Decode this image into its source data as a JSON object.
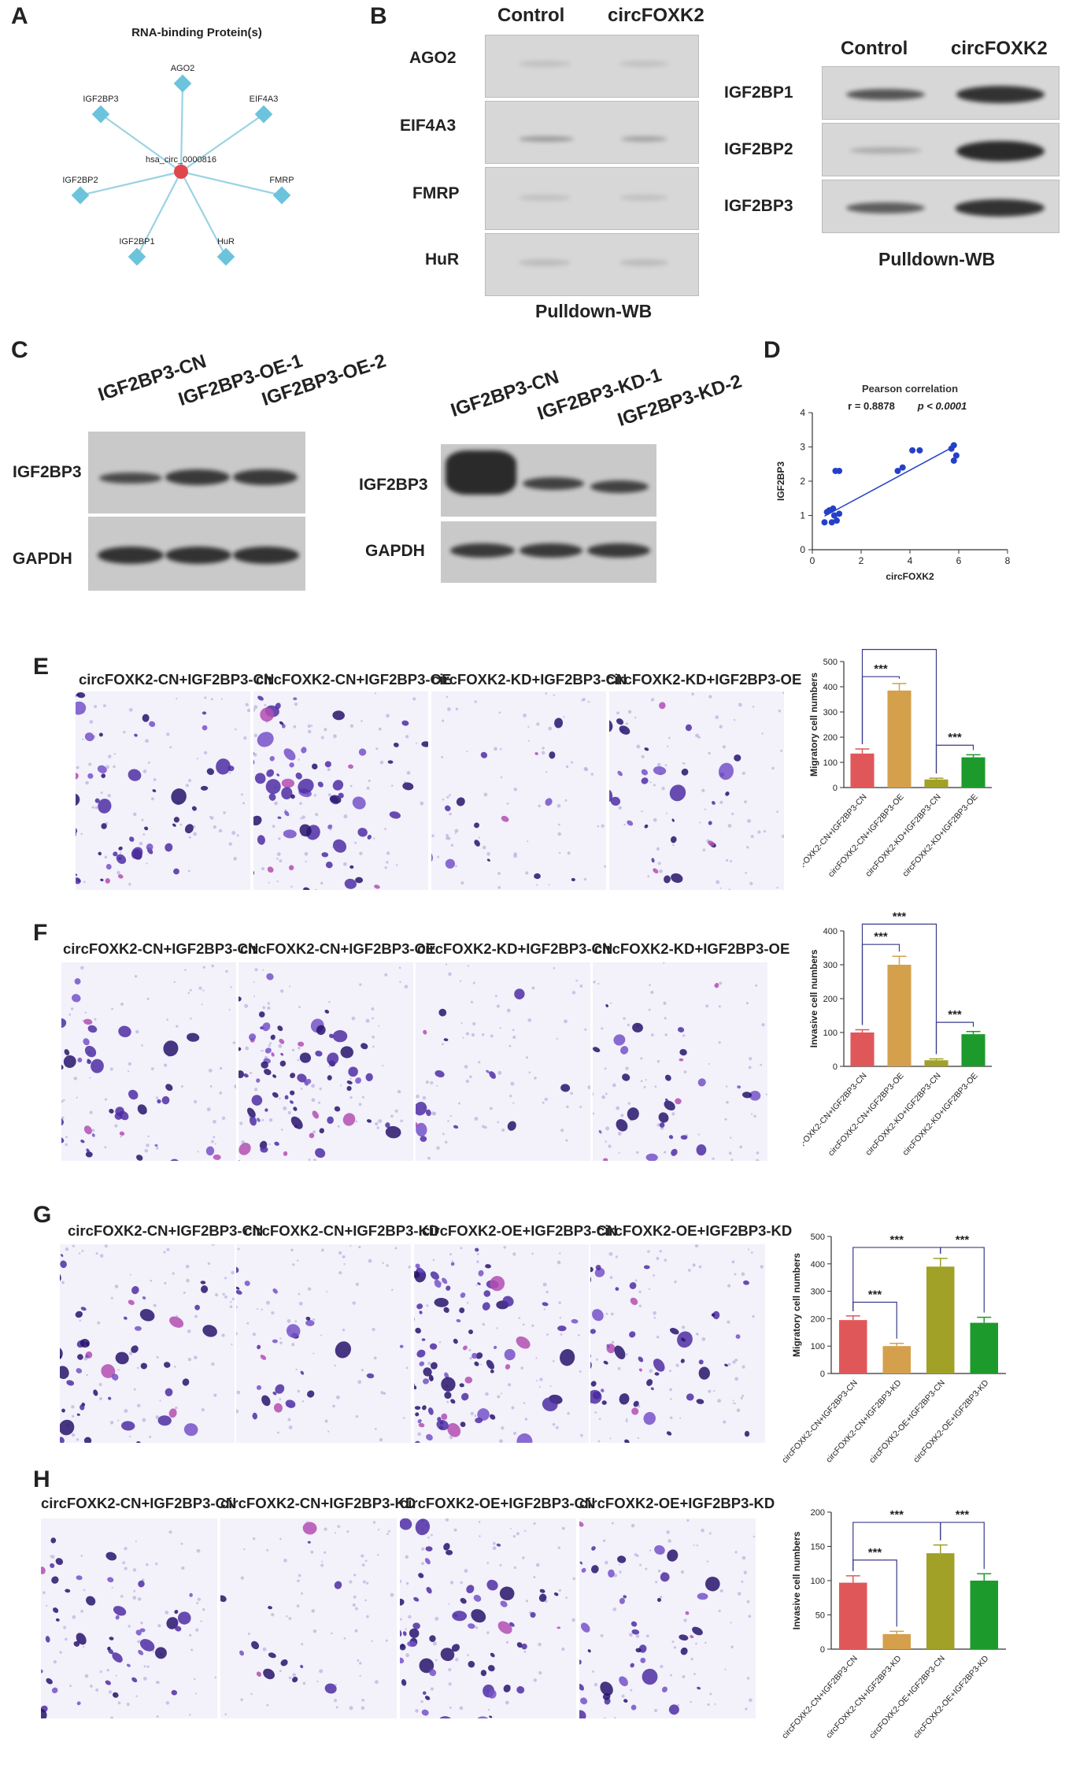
{
  "panels": [
    "A",
    "B",
    "C",
    "D",
    "E",
    "F",
    "G",
    "H"
  ],
  "panel_a": {
    "title": "RNA-binding Protein(s)",
    "center": "hsa_circ_0000816",
    "nodes": [
      "AGO2",
      "EIF4A3",
      "FMRP",
      "HuR",
      "IGF2BP1",
      "IGF2BP2",
      "IGF2BP3"
    ],
    "center_color": "#e0474c",
    "node_color": "#6cc3dc"
  },
  "panel_b_left": {
    "columns": [
      "Control",
      "circFOXK2"
    ],
    "rows": [
      "AGO2",
      "EIF4A3",
      "FMRP",
      "HuR"
    ],
    "caption": "Pulldown-WB"
  },
  "panel_b_right": {
    "columns": [
      "Control",
      "circFOXK2"
    ],
    "rows": [
      "IGF2BP1",
      "IGF2BP2",
      "IGF2BP3"
    ],
    "caption": "Pulldown-WB"
  },
  "panel_c_left": {
    "columns": [
      "IGF2BP3-CN",
      "IGF2BP3-OE-1",
      "IGF2BP3-OE-2"
    ],
    "rows": [
      "IGF2BP3",
      "GAPDH"
    ]
  },
  "panel_c_right": {
    "columns": [
      "IGF2BP3-CN",
      "IGF2BP3-KD-1",
      "IGF2BP3-KD-2"
    ],
    "rows": [
      "IGF2BP3",
      "GAPDH"
    ]
  },
  "panel_e": {
    "images": [
      "circFOXK2-CN+IGF2BP3-CN",
      "circFOXK2-CN+IGF2BP3-OE",
      "circFOXK2-KD+IGF2BP3-CN",
      "circFOXK2-KD+IGF2BP3-OE"
    ]
  },
  "panel_f": {
    "images": [
      "circFOXK2-CN+IGF2BP3-CN",
      "circFOXK2-CN+IGF2BP3-OE",
      "circFOXK2-KD+IGF2BP3-CN",
      "circFOXK2-KD+IGF2BP3-OE"
    ]
  },
  "panel_g": {
    "images": [
      "circFOXK2-CN+IGF2BP3-CN",
      "circFOXK2-CN+IGF2BP3-KD",
      "circFOXK2-OE+IGF2BP3-CN",
      "circFOXK2-OE+IGF2BP3-KD"
    ]
  },
  "panel_h": {
    "images": [
      "circFOXK2-CN+IGF2BP3-CN",
      "circFOXK2-CN+IGF2BP3-KD",
      "circFOXK2-OE+IGF2BP3-CN",
      "circFOXK2-OE+IGF2BP3-KD"
    ]
  },
  "chart_data": [
    {
      "id": "D",
      "type": "scatter",
      "title": "Pearson correlation",
      "stat_r": "r = 0.8878",
      "stat_p": "p < 0.0001",
      "xlabel": "circFOXK2",
      "ylabel": "IGF2BP3",
      "xlim": [
        0,
        8
      ],
      "ylim": [
        0,
        4
      ],
      "xticks": [
        0,
        2,
        4,
        6,
        8
      ],
      "yticks": [
        0,
        1,
        2,
        3,
        4
      ],
      "points": [
        [
          0.5,
          0.8
        ],
        [
          0.6,
          1.1
        ],
        [
          0.7,
          1.15
        ],
        [
          0.8,
          0.8
        ],
        [
          0.85,
          1.2
        ],
        [
          0.9,
          1.0
        ],
        [
          1.0,
          0.85
        ],
        [
          1.1,
          1.05
        ],
        [
          0.95,
          2.3
        ],
        [
          1.1,
          2.3
        ],
        [
          3.5,
          2.3
        ],
        [
          3.7,
          2.4
        ],
        [
          4.1,
          2.9
        ],
        [
          4.4,
          2.9
        ],
        [
          5.7,
          2.95
        ],
        [
          5.8,
          3.05
        ],
        [
          5.8,
          2.6
        ],
        [
          5.9,
          2.75
        ]
      ],
      "fit": [
        [
          0.5,
          0.98
        ],
        [
          5.9,
          3.05
        ]
      ],
      "color": "#2540c8"
    },
    {
      "id": "E",
      "type": "bar",
      "ylabel": "Migratory cell numbers",
      "categories": [
        "circFOXK2-CN+IGF2BP3-CN",
        "circFOXK2-CN+IGF2BP3-OE",
        "circFOXK2-KD+IGF2BP3-CN",
        "circFOXK2-KD+IGF2BP3-OE"
      ],
      "values": [
        135,
        385,
        32,
        120
      ],
      "errors": [
        18,
        28,
        5,
        10
      ],
      "colors": [
        "#e0575a",
        "#d4a04c",
        "#a0a126",
        "#1c9b2c"
      ],
      "ylim": [
        0,
        500
      ],
      "yticks": [
        0,
        100,
        200,
        300,
        400,
        500
      ],
      "sig": [
        {
          "a": 0,
          "b": 1,
          "label": "***",
          "level": 440
        },
        {
          "a": 0,
          "b": 2,
          "label": "***",
          "level": 548
        },
        {
          "a": 2,
          "b": 3,
          "label": "***",
          "level": 168
        }
      ]
    },
    {
      "id": "F",
      "type": "bar",
      "ylabel": "Invasive cell numbers",
      "categories": [
        "circFOXK2-CN+IGF2BP3-CN",
        "circFOXK2-CN+IGF2BP3-OE",
        "circFOXK2-KD+IGF2BP3-CN",
        "circFOXK2-KD+IGF2BP3-OE"
      ],
      "values": [
        100,
        300,
        18,
        95
      ],
      "errors": [
        8,
        25,
        4,
        8
      ],
      "colors": [
        "#e0575a",
        "#d4a04c",
        "#a0a126",
        "#1c9b2c"
      ],
      "ylim": [
        0,
        400
      ],
      "yticks": [
        0,
        100,
        200,
        300,
        400
      ],
      "sig": [
        {
          "a": 0,
          "b": 1,
          "label": "***",
          "level": 360
        },
        {
          "a": 0,
          "b": 2,
          "label": "***",
          "level": 420
        },
        {
          "a": 2,
          "b": 3,
          "label": "***",
          "level": 130
        }
      ]
    },
    {
      "id": "G",
      "type": "bar",
      "ylabel": "Migratory cell numbers",
      "categories": [
        "circFOXK2-CN+IGF2BP3-CN",
        "circFOXK2-CN+IGF2BP3-KD",
        "circFOXK2-OE+IGF2BP3-CN",
        "circFOXK2-OE+IGF2BP3-KD"
      ],
      "values": [
        195,
        100,
        390,
        185
      ],
      "errors": [
        15,
        10,
        30,
        20
      ],
      "colors": [
        "#e0575a",
        "#d4a04c",
        "#a0a126",
        "#1c9b2c"
      ],
      "ylim": [
        0,
        500
      ],
      "yticks": [
        0,
        100,
        200,
        300,
        400,
        500
      ],
      "sig": [
        {
          "a": 0,
          "b": 1,
          "label": "***",
          "level": 260
        },
        {
          "a": 0,
          "b": 2,
          "label": "***",
          "level": 460
        },
        {
          "a": 2,
          "b": 3,
          "label": "***",
          "level": 460
        }
      ]
    },
    {
      "id": "H",
      "type": "bar",
      "ylabel": "Invasive cell numbers",
      "categories": [
        "circFOXK2-CN+IGF2BP3-CN",
        "circFOXK2-CN+IGF2BP3-KD",
        "circFOXK2-OE+IGF2BP3-CN",
        "circFOXK2-OE+IGF2BP3-KD"
      ],
      "values": [
        97,
        22,
        140,
        100
      ],
      "errors": [
        10,
        4,
        12,
        10
      ],
      "colors": [
        "#e0575a",
        "#d4a04c",
        "#a0a126",
        "#1c9b2c"
      ],
      "ylim": [
        0,
        200
      ],
      "yticks": [
        0,
        50,
        100,
        150,
        200
      ],
      "sig": [
        {
          "a": 0,
          "b": 1,
          "label": "***",
          "level": 130
        },
        {
          "a": 0,
          "b": 2,
          "label": "***",
          "level": 185
        },
        {
          "a": 2,
          "b": 3,
          "label": "***",
          "level": 185
        }
      ]
    }
  ]
}
